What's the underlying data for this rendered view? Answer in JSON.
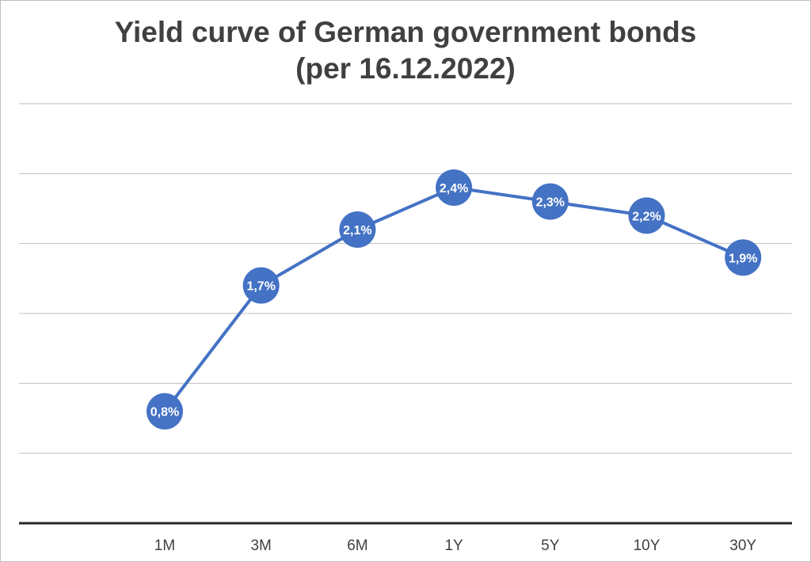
{
  "chart_data": {
    "type": "line",
    "title_line1": "Yield curve of German government bonds",
    "title_line2": "(per 16.12.2022)",
    "categories": [
      "1M",
      "3M",
      "6M",
      "1Y",
      "5Y",
      "10Y",
      "30Y"
    ],
    "series": [
      {
        "values": [
          0.8,
          1.7,
          2.1,
          2.4,
          2.3,
          2.2,
          1.9
        ]
      }
    ],
    "data_labels": [
      "0,8%",
      "1,7%",
      "2,1%",
      "2,4%",
      "2,3%",
      "2,2%",
      "1,9%"
    ],
    "ylim": [
      0,
      3
    ],
    "y_gridlines": [
      0.5,
      1.0,
      1.5,
      2.0,
      2.5,
      3.0
    ],
    "grid": true,
    "legend": "none",
    "colors": {
      "series": "#4472c4",
      "grid": "#bfbfbf",
      "axis": "#262626",
      "label_text": "#ffffff",
      "title": "#404040"
    }
  }
}
